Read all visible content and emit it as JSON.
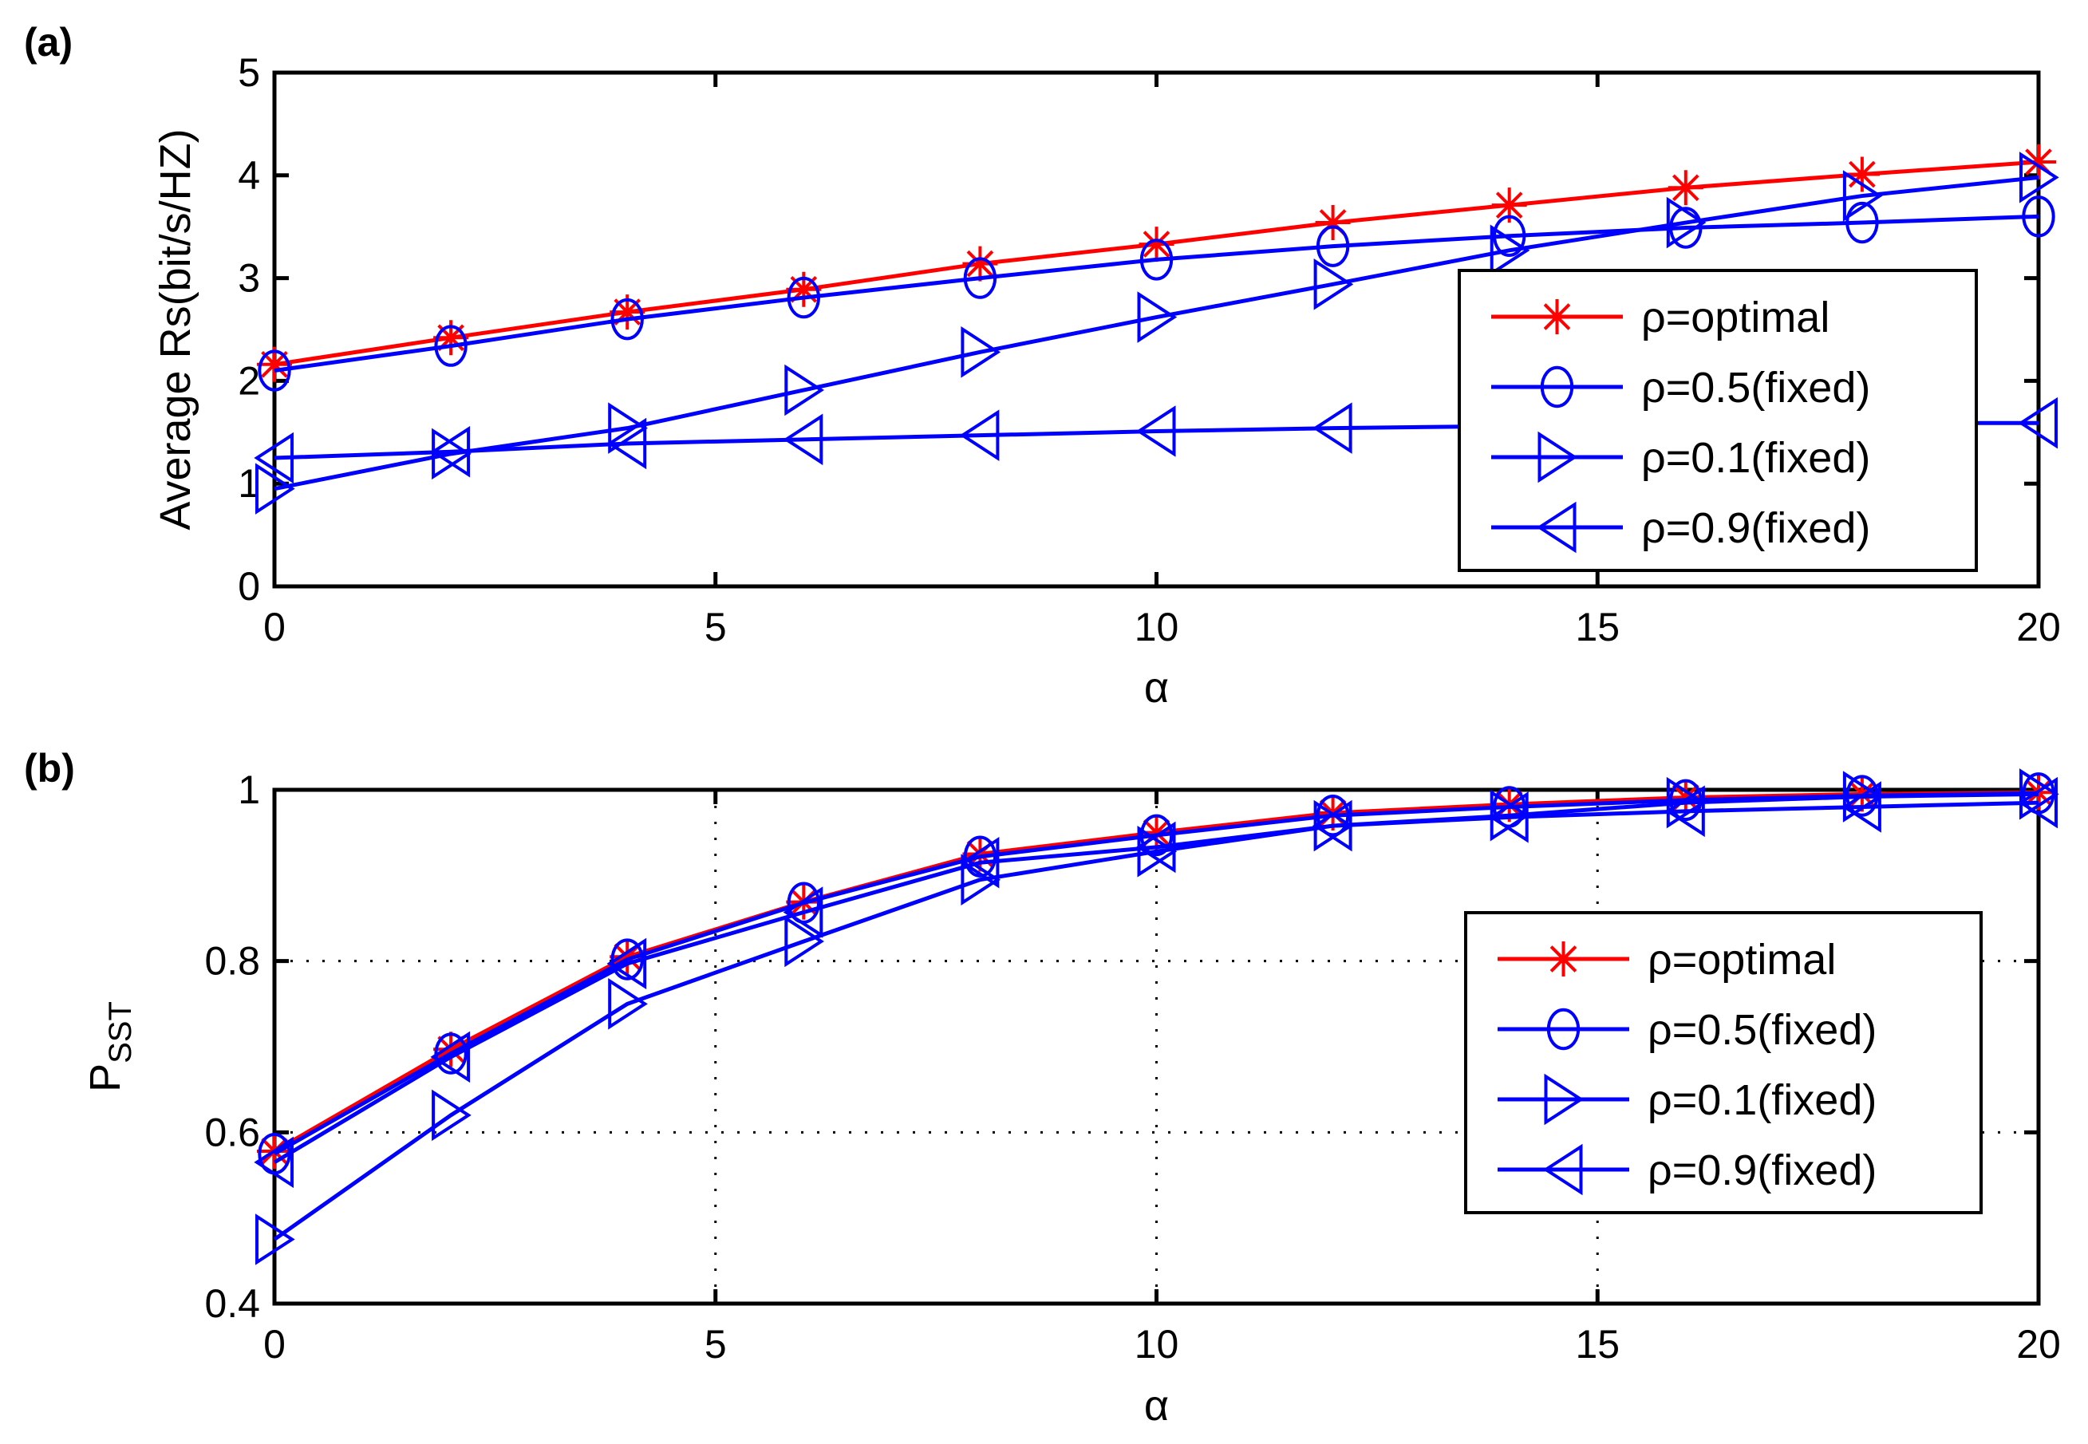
{
  "chart_data": [
    {
      "type": "line",
      "panel_label": "(a)",
      "xlabel": "α",
      "ylabel": "Average Rs(bit/s/HZ)",
      "xlim": [
        0,
        20
      ],
      "ylim": [
        0,
        5
      ],
      "xticks": [
        0,
        5,
        10,
        15,
        20
      ],
      "yticks": [
        0,
        1,
        2,
        3,
        4,
        5
      ],
      "grid": false,
      "legend_position": "lower-right",
      "x": [
        0,
        2,
        4,
        6,
        8,
        10,
        12,
        14,
        16,
        18,
        20
      ],
      "series": [
        {
          "name": "ρ=optimal",
          "color": "#ff0000",
          "marker": "star",
          "values": [
            2.16,
            2.42,
            2.67,
            2.89,
            3.14,
            3.33,
            3.54,
            3.71,
            3.88,
            4.01,
            4.13
          ]
        },
        {
          "name": "ρ=0.5(fixed)",
          "color": "#0000ff",
          "marker": "circle",
          "values": [
            2.1,
            2.34,
            2.6,
            2.81,
            3.0,
            3.18,
            3.31,
            3.41,
            3.49,
            3.54,
            3.6
          ]
        },
        {
          "name": "ρ=0.1(fixed)",
          "color": "#0000ff",
          "marker": "triangle-right",
          "values": [
            0.95,
            1.29,
            1.54,
            1.91,
            2.28,
            2.62,
            2.94,
            3.27,
            3.54,
            3.8,
            3.98
          ]
        },
        {
          "name": "ρ=0.9(fixed)",
          "color": "#0000ff",
          "marker": "triangle-left",
          "values": [
            1.25,
            1.31,
            1.39,
            1.43,
            1.47,
            1.51,
            1.54,
            1.56,
            1.57,
            1.59,
            1.59
          ]
        }
      ]
    },
    {
      "type": "line",
      "panel_label": "(b)",
      "xlabel": "α",
      "ylabel": "P",
      "ylabel_sub": "SST",
      "xlim": [
        0,
        20
      ],
      "ylim": [
        0.4,
        1
      ],
      "xticks": [
        0,
        5,
        10,
        15,
        20
      ],
      "yticks": [
        0.4,
        0.6,
        0.8,
        1
      ],
      "grid": true,
      "legend_position": "lower-right",
      "x": [
        0,
        2,
        4,
        6,
        8,
        10,
        12,
        14,
        16,
        18,
        20
      ],
      "series": [
        {
          "name": "ρ=optimal",
          "color": "#ff0000",
          "marker": "star",
          "values": [
            0.578,
            0.697,
            0.805,
            0.869,
            0.925,
            0.95,
            0.973,
            0.983,
            0.991,
            0.995,
            0.997
          ]
        },
        {
          "name": "ρ=0.5(fixed)",
          "color": "#0000ff",
          "marker": "circle",
          "values": [
            0.575,
            0.692,
            0.802,
            0.868,
            0.922,
            0.947,
            0.97,
            0.98,
            0.988,
            0.993,
            0.996
          ]
        },
        {
          "name": "ρ=0.1(fixed)",
          "color": "#0000ff",
          "marker": "triangle-right",
          "values": [
            0.475,
            0.62,
            0.75,
            0.823,
            0.895,
            0.928,
            0.958,
            0.97,
            0.985,
            0.992,
            0.995
          ]
        },
        {
          "name": "ρ=0.9(fixed)",
          "color": "#0000ff",
          "marker": "triangle-left",
          "values": [
            0.565,
            0.688,
            0.797,
            0.857,
            0.915,
            0.933,
            0.958,
            0.968,
            0.975,
            0.98,
            0.985
          ]
        }
      ]
    }
  ]
}
